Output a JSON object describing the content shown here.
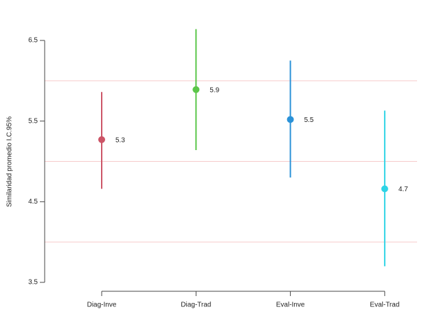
{
  "chart_data": {
    "type": "pointrange",
    "y_label": "Similaridad promedio I.C.95%",
    "categories": [
      "Diag-Inve",
      "Diag-Trad",
      "Eval-Inve",
      "Eval-Trad"
    ],
    "values": [
      5.27,
      5.89,
      5.52,
      4.66
    ],
    "value_labels": [
      "5.3",
      "5.9",
      "5.5",
      "4.7"
    ],
    "lower": [
      4.66,
      5.14,
      4.8,
      3.7
    ],
    "upper": [
      5.86,
      6.64,
      6.25,
      5.63
    ],
    "colors": [
      "#cc5466",
      "#5cc64a",
      "#2b92d8",
      "#2ed4e6"
    ],
    "ylim": [
      3.5,
      6.5
    ],
    "yticks": [
      3.5,
      4.5,
      5.5,
      6.5
    ],
    "grid_values": [
      4,
      5,
      6
    ],
    "grid_color": "#f6caca"
  }
}
